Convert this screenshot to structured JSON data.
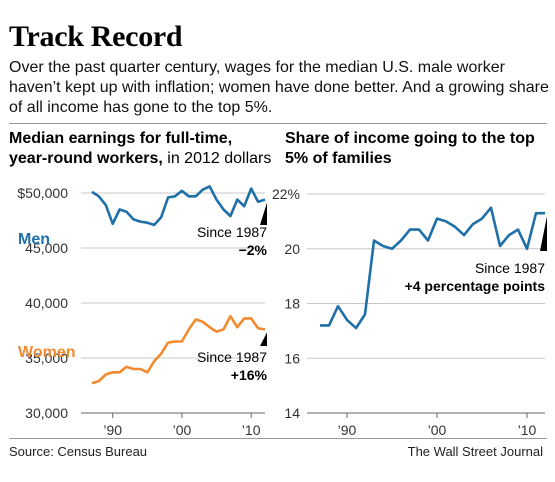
{
  "header": {
    "title": "Track Record",
    "subtitle": "Over the past quarter century, wages for the median U.S. male worker haven’t kept up with inflation; women have done better. And a growing share of all income has gone to the top 5%."
  },
  "footer": {
    "source": "Source: Census Bureau",
    "credit": "The Wall Street Journal"
  },
  "chart_data": [
    {
      "type": "line",
      "title_bold": "Median earnings for full-time, year-round workers,",
      "title_normal": " in 2012 dollars",
      "ylim": [
        30000,
        50000
      ],
      "ytick_labels": [
        "$50,000",
        "45,000",
        "40,000",
        "35,000",
        "30,000"
      ],
      "yticks": [
        50000,
        45000,
        40000,
        35000,
        30000
      ],
      "xlim": [
        1986,
        2012
      ],
      "xticks": [
        1990,
        2000,
        2010
      ],
      "xtick_labels": [
        "’90",
        "’00",
        "’10"
      ],
      "grid": "horizontal",
      "series": [
        {
          "name": "Men",
          "color": "#1f6fa8",
          "x": [
            1987,
            1988,
            1989,
            1990,
            1991,
            1992,
            1993,
            1994,
            1995,
            1996,
            1997,
            1998,
            1999,
            2000,
            2001,
            2002,
            2003,
            2004,
            2005,
            2006,
            2007,
            2008,
            2009,
            2010,
            2011,
            2012
          ],
          "values": [
            50100,
            49700,
            48900,
            47200,
            48500,
            48300,
            47600,
            47400,
            47300,
            47100,
            47800,
            49600,
            49700,
            50200,
            49700,
            49700,
            50300,
            50600,
            49400,
            48500,
            47900,
            49400,
            48800,
            50400,
            49200,
            49400
          ],
          "annotation_label": "Since 1987",
          "annotation_value": "−2%"
        },
        {
          "name": "Women",
          "color": "#f28b30",
          "x": [
            1987,
            1988,
            1989,
            1990,
            1991,
            1992,
            1993,
            1994,
            1995,
            1996,
            1997,
            1998,
            1999,
            2000,
            2001,
            2002,
            2003,
            2004,
            2005,
            2006,
            2007,
            2008,
            2009,
            2010,
            2011,
            2012
          ],
          "values": [
            32700,
            32900,
            33500,
            33700,
            33700,
            34200,
            34000,
            34000,
            33700,
            34700,
            35400,
            36400,
            36500,
            36500,
            37600,
            38500,
            38300,
            37800,
            37400,
            37600,
            38800,
            37800,
            38600,
            38600,
            37700,
            37600
          ],
          "annotation_label": "Since 1987",
          "annotation_value": "+16%"
        }
      ]
    },
    {
      "type": "line",
      "title": "Share of income going to the top 5% of families",
      "ylim": [
        14,
        22
      ],
      "yticks": [
        22,
        20,
        18,
        16,
        14
      ],
      "ytick_labels": [
        "22%",
        "20",
        "18",
        "16",
        "14"
      ],
      "xlim": [
        1986,
        2012
      ],
      "xticks": [
        1990,
        2000,
        2010
      ],
      "xtick_labels": [
        "’90",
        "’00",
        "’10"
      ],
      "grid": "horizontal",
      "series": [
        {
          "name": "",
          "color": "#1f6fa8",
          "x": [
            1987,
            1988,
            1989,
            1990,
            1991,
            1992,
            1993,
            1994,
            1995,
            1996,
            1997,
            1998,
            1999,
            2000,
            2001,
            2002,
            2003,
            2004,
            2005,
            2006,
            2007,
            2008,
            2009,
            2010,
            2011,
            2012
          ],
          "values": [
            17.2,
            17.2,
            17.9,
            17.4,
            17.1,
            17.6,
            20.3,
            20.1,
            20.0,
            20.3,
            20.7,
            20.7,
            20.3,
            21.1,
            21.0,
            20.8,
            20.5,
            20.9,
            21.1,
            21.5,
            20.1,
            20.5,
            20.7,
            20.0,
            21.3,
            21.3
          ],
          "annotation_label": "Since 1987",
          "annotation_value": "+4 percentage points"
        }
      ]
    }
  ]
}
